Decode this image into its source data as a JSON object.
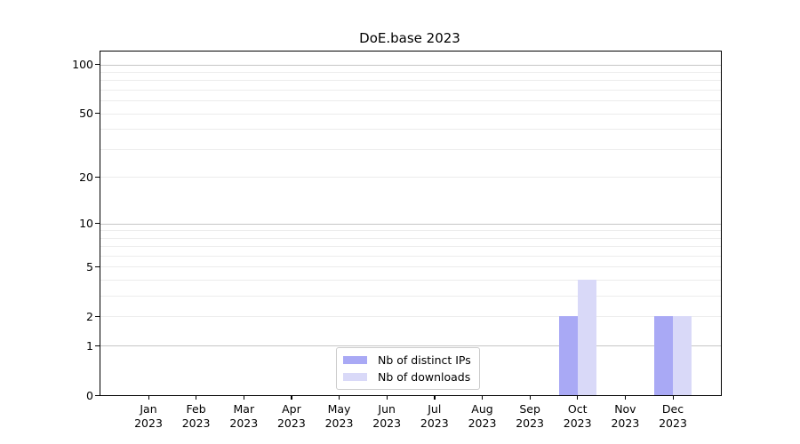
{
  "chart_data": {
    "type": "bar",
    "title": "DoE.base 2023",
    "xlabel": "",
    "ylabel": "",
    "yscale": "log1p",
    "ylim": [
      0,
      120
    ],
    "y_ticks": [
      0,
      1,
      2,
      5,
      10,
      20,
      50,
      100
    ],
    "grid": {
      "major_values": [
        1,
        10,
        100
      ],
      "minor_values": [
        2,
        3,
        4,
        5,
        6,
        7,
        8,
        9,
        20,
        30,
        40,
        50,
        60,
        70,
        80,
        90
      ]
    },
    "categories": [
      {
        "month": "Jan",
        "year": "2023"
      },
      {
        "month": "Feb",
        "year": "2023"
      },
      {
        "month": "Mar",
        "year": "2023"
      },
      {
        "month": "Apr",
        "year": "2023"
      },
      {
        "month": "May",
        "year": "2023"
      },
      {
        "month": "Jun",
        "year": "2023"
      },
      {
        "month": "Jul",
        "year": "2023"
      },
      {
        "month": "Aug",
        "year": "2023"
      },
      {
        "month": "Sep",
        "year": "2023"
      },
      {
        "month": "Oct",
        "year": "2023"
      },
      {
        "month": "Nov",
        "year": "2023"
      },
      {
        "month": "Dec",
        "year": "2023"
      }
    ],
    "series": [
      {
        "name": "Nb of distinct IPs",
        "color": "#a9a9f5",
        "values": [
          0,
          0,
          0,
          0,
          0,
          0,
          0,
          0,
          0,
          2,
          0,
          2
        ]
      },
      {
        "name": "Nb of downloads",
        "color": "#d9d9f8",
        "values": [
          0,
          0,
          0,
          0,
          0,
          0,
          0,
          0,
          0,
          4,
          0,
          2
        ]
      }
    ],
    "legend": {
      "position": "lower center"
    },
    "style": {
      "grid_major_color": "#c6c6c6",
      "grid_minor_color": "#ececec",
      "axis_color": "#000000",
      "legend_border_color": "#cccccc",
      "background": "#ffffff"
    }
  }
}
